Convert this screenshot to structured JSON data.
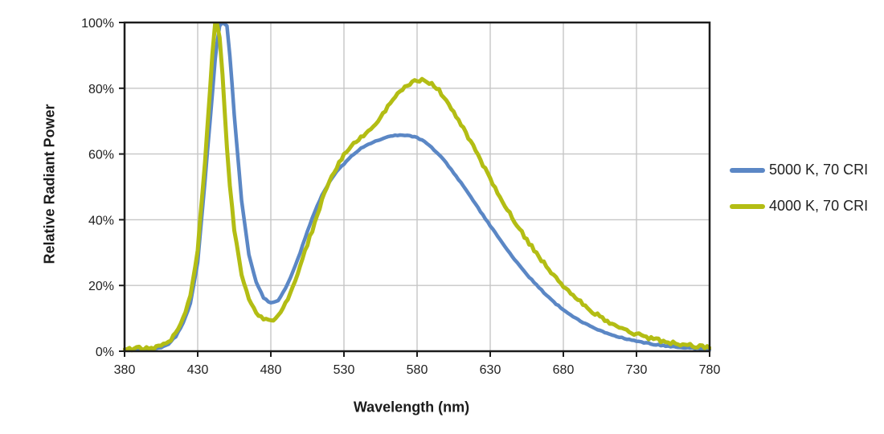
{
  "chart_data": {
    "type": "line",
    "title": "",
    "xlabel": "Wavelength (nm)",
    "ylabel": "Relative Radiant Power",
    "xlim": [
      380,
      780
    ],
    "ylim": [
      0,
      100
    ],
    "grid": true,
    "legend_position": "right-center",
    "background_color": "#ffffff",
    "axis_color": "#1c1c1c",
    "grid_color": "#c6c6c6",
    "x_ticks": [
      380,
      430,
      480,
      530,
      580,
      630,
      680,
      730,
      780
    ],
    "x_tick_labels": [
      "380",
      "430",
      "480",
      "530",
      "580",
      "630",
      "680",
      "730",
      "780"
    ],
    "y_ticks": [
      0,
      20,
      40,
      60,
      80,
      100
    ],
    "y_tick_labels": [
      "0%",
      "20%",
      "40%",
      "60%",
      "80%",
      "100%"
    ],
    "x": [
      380,
      385,
      390,
      395,
      400,
      405,
      410,
      415,
      420,
      425,
      430,
      435,
      440,
      442,
      443,
      445,
      447,
      450,
      452,
      455,
      460,
      465,
      470,
      475,
      480,
      485,
      490,
      495,
      500,
      505,
      510,
      515,
      520,
      525,
      530,
      535,
      540,
      545,
      550,
      555,
      560,
      565,
      570,
      575,
      580,
      585,
      590,
      595,
      600,
      605,
      610,
      615,
      620,
      625,
      630,
      635,
      640,
      645,
      650,
      655,
      660,
      665,
      670,
      675,
      680,
      685,
      690,
      695,
      700,
      705,
      710,
      715,
      720,
      725,
      730,
      735,
      740,
      745,
      750,
      755,
      760,
      765,
      770,
      775,
      780
    ],
    "series": [
      {
        "name": "5000 K, 70 CRI",
        "color": "#5b87c5",
        "noise_amplitude": 0.15,
        "values": [
          0.4,
          0.4,
          0.5,
          0.6,
          0.8,
          1.2,
          2.2,
          4.5,
          8.5,
          14.5,
          27,
          52,
          78,
          89,
          93,
          99,
          100,
          99,
          90,
          72,
          46,
          29.5,
          21,
          16.3,
          14.6,
          15.5,
          19,
          24,
          30,
          36.5,
          42.5,
          47.5,
          51.5,
          54.6,
          57,
          59.3,
          61.2,
          62.6,
          63.6,
          64.5,
          65.2,
          65.6,
          65.8,
          65.5,
          65,
          63.8,
          62,
          59.8,
          57.2,
          54.3,
          51.2,
          48,
          44.7,
          41.4,
          38.2,
          35,
          31.9,
          28.9,
          26.1,
          23.4,
          20.9,
          18.6,
          16.4,
          14.4,
          12.6,
          11,
          9.6,
          8.4,
          7.3,
          6.3,
          5.5,
          4.7,
          4.1,
          3.5,
          3,
          2.6,
          2.2,
          1.9,
          1.6,
          1.4,
          1.2,
          1,
          0.9,
          0.8,
          0.7
        ]
      },
      {
        "name": "4000 K, 70 CRI",
        "color": "#b3bd14",
        "noise_amplitude": 0.5,
        "values": [
          0.9,
          0.7,
          1.0,
          0.8,
          1.1,
          1.5,
          2.8,
          5.5,
          10,
          17,
          31,
          58,
          90,
          100,
          100,
          95,
          84,
          62,
          50,
          37,
          23.5,
          15.8,
          11.5,
          9.5,
          9.2,
          11,
          14.5,
          19.5,
          26,
          32.5,
          39,
          46,
          51.5,
          56,
          60,
          62.3,
          64.4,
          66.3,
          68,
          71.3,
          74.5,
          77.3,
          79.6,
          81.3,
          82.3,
          82.4,
          81.4,
          79.3,
          76.4,
          73,
          69.2,
          65.1,
          60.9,
          56.7,
          52.5,
          48.4,
          44.4,
          40.7,
          37.2,
          33.9,
          30.8,
          27.8,
          25,
          22.4,
          20,
          17.7,
          15.6,
          13.7,
          12,
          10.5,
          9.2,
          8,
          6.9,
          6,
          5.2,
          4.5,
          3.9,
          3.4,
          2.9,
          2.5,
          2.2,
          1.9,
          1.6,
          1.4,
          1.2
        ]
      }
    ]
  }
}
